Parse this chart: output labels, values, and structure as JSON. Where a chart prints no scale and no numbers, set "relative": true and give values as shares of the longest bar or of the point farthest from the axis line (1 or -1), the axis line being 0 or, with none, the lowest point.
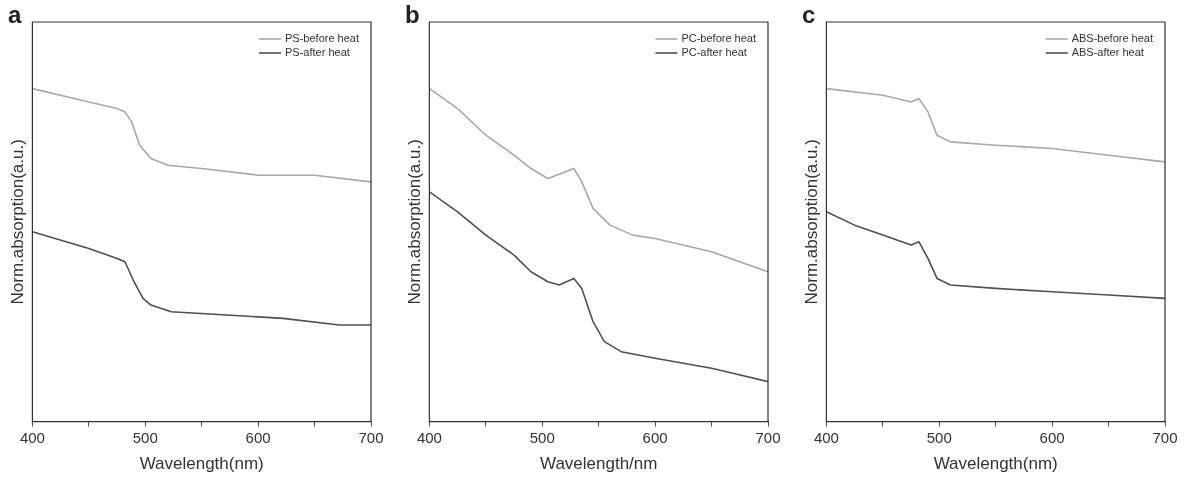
{
  "chart_data": [
    {
      "type": "line",
      "title": "a",
      "xlabel": "Wavelength(nm)",
      "ylabel": "Norm.absorption(a.u.)",
      "relative": true,
      "legend": "top right",
      "xlim": [
        400,
        700
      ],
      "xticks": [
        400,
        {
          "value": 450,
          "label": null
        },
        500,
        {
          "value": 550,
          "label": null
        },
        600,
        {
          "value": 650,
          "label": null
        },
        700
      ],
      "series": [
        {
          "name": "PS-before heat",
          "color": "#a8a8a8",
          "x": [
            400,
            450,
            475,
            482,
            488,
            495,
            505,
            520,
            550,
            600,
            650,
            700
          ],
          "values": [
            1.0,
            0.96,
            0.94,
            0.93,
            0.9,
            0.83,
            0.79,
            0.77,
            0.76,
            0.74,
            0.74,
            0.72
          ]
        },
        {
          "name": "PS-after heat",
          "color": "#505050",
          "x": [
            400,
            450,
            475,
            482,
            490,
            498,
            505,
            523,
            572,
            622,
            672,
            700
          ],
          "values": [
            0.57,
            0.52,
            0.49,
            0.48,
            0.42,
            0.37,
            0.35,
            0.33,
            0.32,
            0.31,
            0.29,
            0.29
          ]
        }
      ]
    },
    {
      "type": "line",
      "title": "b",
      "xlabel": "Wavelength/nm",
      "ylabel": "Norm.absorption(a.u.)",
      "relative": true,
      "legend": "top right",
      "xlim": [
        400,
        700
      ],
      "xticks": [
        400,
        {
          "value": 450,
          "label": null
        },
        500,
        {
          "value": 550,
          "label": null
        },
        600,
        {
          "value": 650,
          "label": null
        },
        700
      ],
      "series": [
        {
          "name": "PC-before heat",
          "color": "#a8a8a8",
          "x": [
            400,
            425,
            450,
            475,
            490,
            505,
            528,
            535,
            545,
            560,
            580,
            600,
            650,
            700
          ],
          "values": [
            1.0,
            0.94,
            0.86,
            0.8,
            0.76,
            0.73,
            0.76,
            0.72,
            0.64,
            0.59,
            0.56,
            0.55,
            0.51,
            0.45
          ]
        },
        {
          "name": "PC-after heat",
          "color": "#505050",
          "x": [
            400,
            425,
            450,
            475,
            490,
            505,
            515,
            528,
            535,
            545,
            555,
            570,
            600,
            650,
            700
          ],
          "values": [
            0.69,
            0.63,
            0.56,
            0.5,
            0.45,
            0.42,
            0.41,
            0.43,
            0.4,
            0.3,
            0.24,
            0.21,
            0.19,
            0.16,
            0.12
          ]
        }
      ]
    },
    {
      "type": "line",
      "title": "c",
      "xlabel": "Wavelength(nm)",
      "ylabel": "Norm.absorption(a.u.)",
      "relative": true,
      "legend": "top right",
      "xlim": [
        400,
        700
      ],
      "xticks": [
        400,
        {
          "value": 450,
          "label": null
        },
        500,
        {
          "value": 550,
          "label": null
        },
        600,
        {
          "value": 650,
          "label": null
        },
        700
      ],
      "series": [
        {
          "name": "ABS-before heat",
          "color": "#a8a8a8",
          "x": [
            400,
            450,
            475,
            482,
            490,
            498,
            510,
            550,
            600,
            650,
            700
          ],
          "values": [
            1.0,
            0.98,
            0.96,
            0.97,
            0.93,
            0.86,
            0.84,
            0.83,
            0.82,
            0.8,
            0.78
          ]
        },
        {
          "name": "ABS-after heat",
          "color": "#505050",
          "x": [
            400,
            425,
            450,
            475,
            482,
            490,
            498,
            510,
            550,
            600,
            650,
            700
          ],
          "values": [
            0.63,
            0.59,
            0.56,
            0.53,
            0.54,
            0.49,
            0.43,
            0.41,
            0.4,
            0.39,
            0.38,
            0.37
          ]
        }
      ]
    }
  ]
}
